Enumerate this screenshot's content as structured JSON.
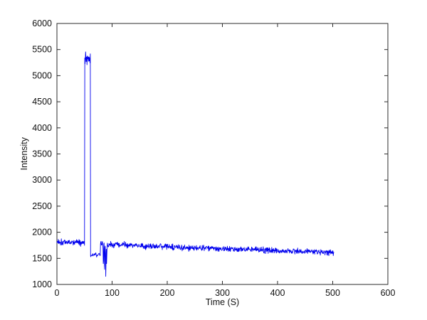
{
  "figure": {
    "background": "#ffffff",
    "axis_color": "#2b2b2b"
  },
  "chart_data": {
    "type": "line",
    "title": "",
    "xlabel": "Time (S)",
    "ylabel": "Intensity",
    "xlim": [
      0,
      600
    ],
    "ylim": [
      1000,
      6000
    ],
    "xticks": [
      0,
      100,
      200,
      300,
      400,
      500,
      600
    ],
    "yticks": [
      1000,
      1500,
      2000,
      2500,
      3000,
      3500,
      4000,
      4500,
      5000,
      5500,
      6000
    ],
    "grid": false,
    "box": true,
    "legend": null,
    "line_color": "#0000ee",
    "line_width": 0.9,
    "sample_interval": 0.5,
    "t_start": 0,
    "t_end": 502,
    "seed": 1337,
    "segments": [
      {
        "t0": 0,
        "t1": 50.5,
        "level_start": 1820,
        "level_end": 1800,
        "noise": 48
      },
      {
        "t0": 50.5,
        "t1": 61,
        "level_start": 5340,
        "level_end": 5340,
        "noise": 95
      },
      {
        "t0": 61,
        "t1": 79,
        "level_start": 1555,
        "level_end": 1580,
        "noise": 32
      },
      {
        "t0": 79,
        "t1": 83,
        "level_start": 1770,
        "level_end": 1800,
        "noise": 50
      },
      {
        "t0": 83,
        "t1": 91,
        "level_start": 1780,
        "level_end": 1770,
        "noise": 55,
        "dips": [
          {
            "t": 84.2,
            "value": 1260
          },
          {
            "t": 86.3,
            "value": 1130
          },
          {
            "t": 88.6,
            "value": 1090
          },
          {
            "t": 90.1,
            "value": 1320
          }
        ]
      },
      {
        "t0": 91,
        "t1": 502,
        "level_start": 1765,
        "level_end": 1615,
        "noise": 45
      }
    ]
  }
}
